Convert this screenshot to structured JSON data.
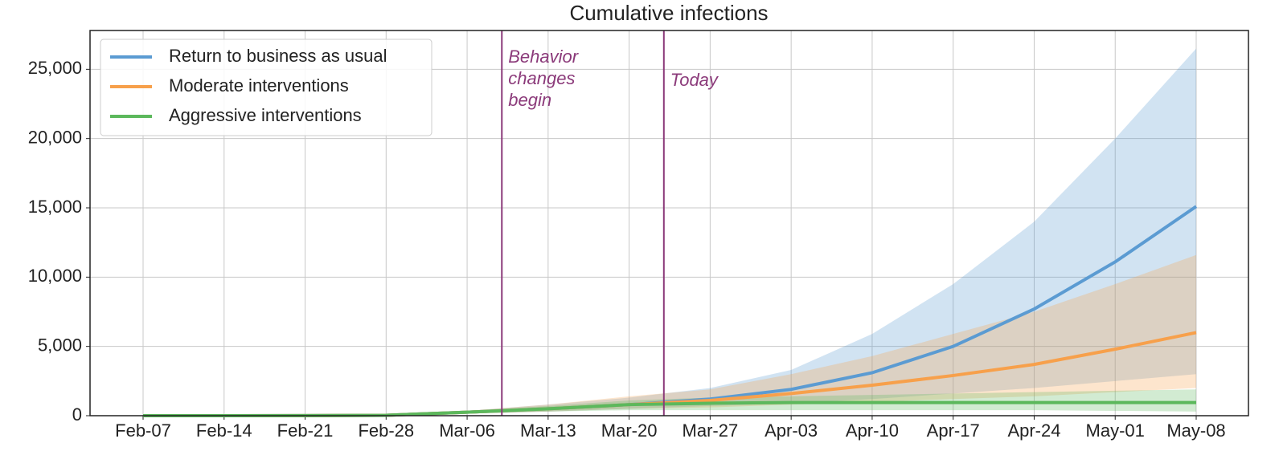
{
  "chart_data": {
    "type": "line",
    "title": "Cumulative infections",
    "categories": [
      "Feb-07",
      "Feb-14",
      "Feb-21",
      "Feb-28",
      "Mar-06",
      "Mar-13",
      "Mar-20",
      "Mar-27",
      "Apr-03",
      "Apr-10",
      "Apr-17",
      "Apr-24",
      "May-01",
      "May-08"
    ],
    "series": [
      {
        "name": "Return to business as usual",
        "color": "#5b9bd2",
        "values": [
          0,
          0,
          5,
          30,
          250,
          500,
          800,
          1200,
          1900,
          3100,
          5000,
          7700,
          11100,
          15100
        ],
        "lower": [
          0,
          0,
          0,
          20,
          150,
          300,
          500,
          700,
          900,
          1200,
          1600,
          2000,
          2500,
          3000
        ],
        "upper": [
          0,
          0,
          10,
          50,
          350,
          800,
          1300,
          2000,
          3300,
          5900,
          9500,
          14000,
          20000,
          26500
        ]
      },
      {
        "name": "Moderate interventions",
        "color": "#f7a04b",
        "values": [
          0,
          0,
          5,
          30,
          250,
          500,
          800,
          1100,
          1600,
          2200,
          2900,
          3700,
          4800,
          6000
        ],
        "lower": [
          0,
          0,
          0,
          20,
          150,
          300,
          500,
          600,
          800,
          1000,
          1200,
          1400,
          1700,
          2000
        ],
        "upper": [
          0,
          0,
          10,
          50,
          350,
          800,
          1400,
          1900,
          3000,
          4300,
          5900,
          7500,
          9500,
          11600
        ]
      },
      {
        "name": "Aggressive interventions",
        "color": "#5cb85c",
        "values": [
          0,
          0,
          5,
          30,
          250,
          500,
          800,
          900,
          950,
          950,
          950,
          950,
          950,
          950
        ],
        "lower": [
          0,
          0,
          0,
          20,
          150,
          300,
          400,
          400,
          400,
          400,
          400,
          400,
          350,
          300
        ],
        "upper": [
          0,
          0,
          10,
          50,
          350,
          700,
          1100,
          1300,
          1400,
          1500,
          1600,
          1700,
          1800,
          1900
        ]
      }
    ],
    "events": [
      {
        "x": "Mar-09",
        "label": [
          "Behavior",
          "changes",
          "begin"
        ],
        "color": "#8b3a7a"
      },
      {
        "x": "Mar-23",
        "label": [
          "Today"
        ],
        "color": "#8b3a7a"
      }
    ],
    "ylim": [
      0,
      27800
    ],
    "yticks": [
      0,
      {
        "value": 5000,
        "label": "5,000"
      },
      {
        "value": 10000,
        "label": "10,000"
      },
      {
        "value": 15000,
        "label": "15,000"
      },
      {
        "value": 20000,
        "label": "20,000"
      },
      {
        "value": 25000,
        "label": "25,000"
      }
    ],
    "grid": true,
    "legend": "upper left"
  }
}
